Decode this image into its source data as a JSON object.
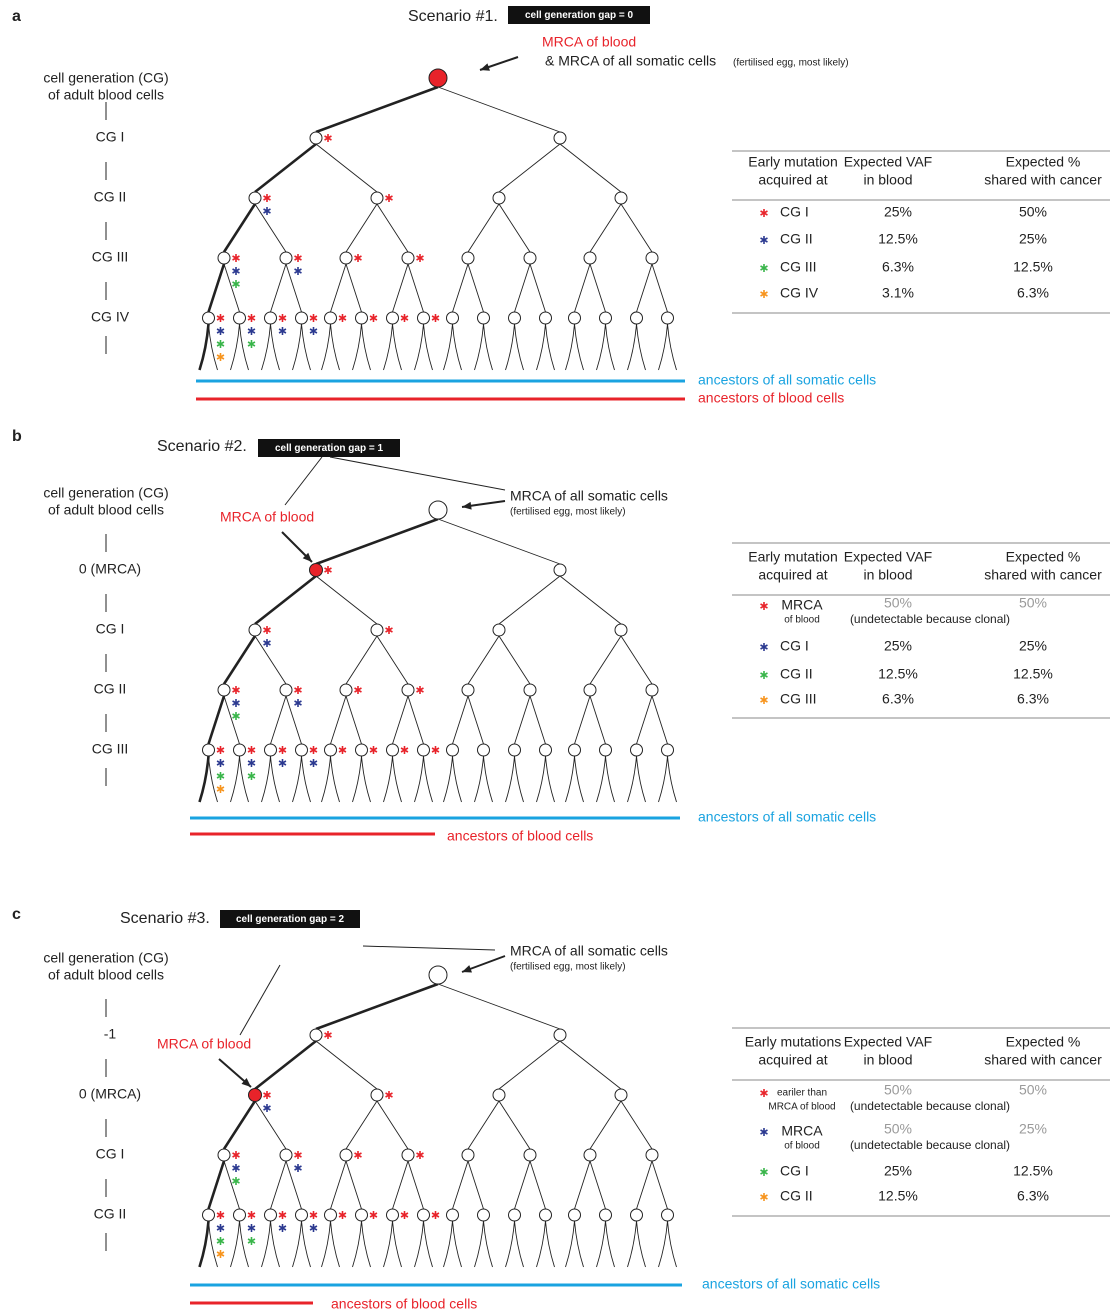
{
  "panels": [
    {
      "label": "a",
      "title": "Scenario #1.",
      "badge": "cell generation gap = 0",
      "mrca_blood": "MRCA of blood",
      "mrca_somatic": "& MRCA of all somatic cells",
      "mrca_somatic_note": "(fertilised egg, most likely)",
      "cg_header": [
        "cell generation (CG)",
        "of adult blood cells"
      ],
      "cg_levels": [
        "CG I",
        "CG II",
        "CG III",
        "CG IV"
      ],
      "table": {
        "header": [
          [
            "Early mutation",
            "acquired at"
          ],
          [
            "Expected VAF",
            "in blood"
          ],
          [
            "Expected %",
            "shared with cancer"
          ]
        ],
        "rows": [
          {
            "label": [
              "CG I"
            ],
            "vaf": "25%",
            "shared": "50%"
          },
          {
            "label": [
              "CG II"
            ],
            "vaf": "12.5%",
            "shared": "25%"
          },
          {
            "label": [
              "CG III"
            ],
            "vaf": "6.3%",
            "shared": "12.5%"
          },
          {
            "label": [
              "CG IV"
            ],
            "vaf": "3.1%",
            "shared": "6.3%"
          }
        ]
      },
      "somatic_line": "ancestors of all somatic cells",
      "blood_line": "ancestors of blood cells"
    },
    {
      "label": "b",
      "title": "Scenario #2.",
      "badge": "cell generation gap = 1",
      "mrca_blood": "MRCA of blood",
      "mrca_somatic": "MRCA of all somatic cells",
      "mrca_somatic_note": "(fertilised egg, most likely)",
      "cg_header": [
        "cell generation (CG)",
        "of adult blood cells"
      ],
      "cg_levels": [
        "0 (MRCA)",
        "CG I",
        "CG II",
        "CG III"
      ],
      "table": {
        "header": [
          [
            "Early mutation",
            "acquired at"
          ],
          [
            "Expected VAF",
            "in blood"
          ],
          [
            "Expected %",
            "shared with cancer"
          ]
        ],
        "rows": [
          {
            "label": [
              "MRCA",
              "of blood"
            ],
            "vaf": "50%",
            "shared": "50%",
            "note": "(undetectable because clonal)"
          },
          {
            "label": [
              "CG I"
            ],
            "vaf": "25%",
            "shared": "25%"
          },
          {
            "label": [
              "CG II"
            ],
            "vaf": "12.5%",
            "shared": "12.5%"
          },
          {
            "label": [
              "CG III"
            ],
            "vaf": "6.3%",
            "shared": "6.3%"
          }
        ]
      },
      "somatic_line": "ancestors of all somatic cells",
      "blood_line": "ancestors of blood cells"
    },
    {
      "label": "c",
      "title": "Scenario #3.",
      "badge": "cell generation gap = 2",
      "mrca_blood": "MRCA of blood",
      "mrca_somatic": "MRCA of all somatic cells",
      "mrca_somatic_note": "(fertilised egg, most likely)",
      "cg_header": [
        "cell generation (CG)",
        "of adult blood cells"
      ],
      "cg_levels": [
        "-1",
        "0 (MRCA)",
        "CG I",
        "CG II"
      ],
      "table": {
        "header": [
          [
            "Early mutations",
            "acquired at"
          ],
          [
            "Expected VAF",
            "in blood"
          ],
          [
            "Expected %",
            "shared with cancer"
          ]
        ],
        "rows": [
          {
            "label": [
              "eariler than",
              "MRCA of blood"
            ],
            "vaf": "50%",
            "shared": "50%",
            "note": "(undetectable because clonal)"
          },
          {
            "label": [
              "MRCA",
              "of blood"
            ],
            "vaf": "50%",
            "shared": "25%",
            "note": "(undetectable because clonal)"
          },
          {
            "label": [
              "CG I"
            ],
            "vaf": "25%",
            "shared": "12.5%"
          },
          {
            "label": [
              "CG II"
            ],
            "vaf": "12.5%",
            "shared": "6.3%"
          }
        ]
      },
      "somatic_line": "ancestors of all somatic cells",
      "blood_line": "ancestors of blood cells"
    }
  ]
}
